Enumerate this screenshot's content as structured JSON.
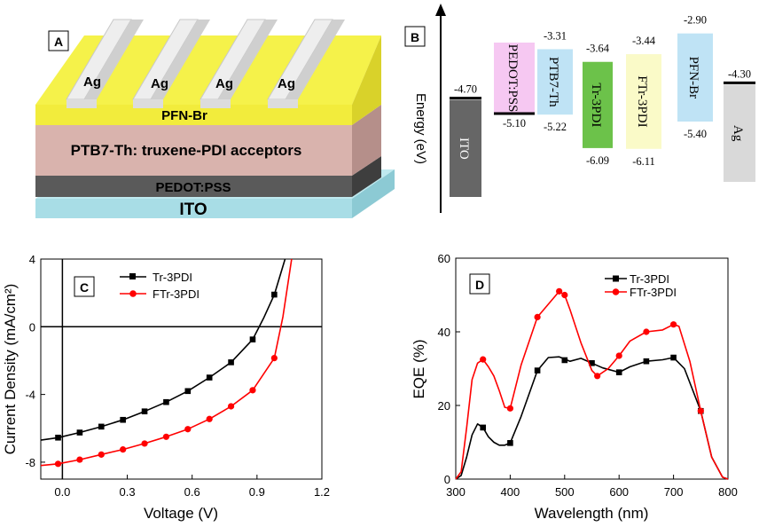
{
  "panels": {
    "a": {
      "letter": "A",
      "electrode_label": "Ag",
      "layers": [
        "PFN-Br",
        "PTB7-Th: truxene-PDI acceptors",
        "PEDOT:PSS",
        "ITO"
      ],
      "colors": {
        "pfn": "#f5f24a",
        "active": "#d9b3ad",
        "pedot": "#5a5a5a",
        "ito": "#a8dde6",
        "ag": "#e8e8e8"
      }
    },
    "b": {
      "letter": "B",
      "axis_label": "Energy (eV)"
    }
  },
  "chart_data": [
    {
      "id": "energy-levels",
      "type": "table",
      "ylabel": "Energy (eV)",
      "materials": [
        {
          "name": "ITO",
          "top": "-4.70",
          "bottom": "",
          "color": "#666666",
          "text_color": "#ffffff"
        },
        {
          "name": "PEDOT:PSS",
          "top": "",
          "bottom": "-5.10",
          "color": "#f6c8f2",
          "text_color": "#000000"
        },
        {
          "name": "PTB7-Th",
          "top": "-3.31",
          "bottom": "-5.22",
          "color": "#bfe3f5",
          "text_color": "#000000"
        },
        {
          "name": "Tr-3PDI",
          "top": "-3.64",
          "bottom": "-6.09",
          "color": "#6cc24a",
          "text_color": "#000000"
        },
        {
          "name": "FTr-3PDI",
          "top": "-3.44",
          "bottom": "-6.11",
          "color": "#fafac8",
          "text_color": "#000000"
        },
        {
          "name": "PFN-Br",
          "top": "-2.90",
          "bottom": "-5.40",
          "color": "#bfe3f5",
          "text_color": "#000000"
        },
        {
          "name": "Ag",
          "top": "-4.30",
          "bottom": "",
          "color": "#d9d9d9",
          "text_color": "#000000"
        }
      ]
    },
    {
      "id": "jv",
      "type": "line",
      "letter": "C",
      "xlabel": "Voltage (V)",
      "ylabel": "Current Density (mA/cm²)",
      "xlim": [
        -0.1,
        1.2
      ],
      "ylim": [
        -9,
        4
      ],
      "xticks": [
        0.0,
        0.3,
        0.6,
        0.9,
        1.2
      ],
      "xtick_labels": [
        "0.0",
        "0.3",
        "0.6",
        "0.9",
        "1.2"
      ],
      "yticks": [
        4,
        0,
        -4,
        -8
      ],
      "ytick_labels": [
        "4",
        "0",
        "-4",
        "-8"
      ],
      "series": [
        {
          "name": "Tr-3PDI",
          "color": "#000000",
          "marker": "square",
          "x": [
            -0.1,
            -0.02,
            0.08,
            0.18,
            0.28,
            0.38,
            0.48,
            0.58,
            0.68,
            0.78,
            0.88,
            0.93,
            0.98,
            1.03
          ],
          "y": [
            -6.7,
            -6.55,
            -6.25,
            -5.9,
            -5.5,
            -5.0,
            -4.45,
            -3.8,
            -3.0,
            -2.1,
            -0.75,
            0.5,
            1.9,
            4.0
          ],
          "marker_x": [
            -0.02,
            0.08,
            0.18,
            0.28,
            0.38,
            0.48,
            0.58,
            0.68,
            0.78,
            0.88,
            0.98
          ],
          "marker_y": [
            -6.55,
            -6.25,
            -5.9,
            -5.5,
            -5.0,
            -4.45,
            -3.8,
            -3.0,
            -2.1,
            -0.75,
            1.9
          ]
        },
        {
          "name": "FTr-3PDI",
          "color": "#ff0000",
          "marker": "circle",
          "x": [
            -0.1,
            -0.02,
            0.08,
            0.18,
            0.28,
            0.38,
            0.48,
            0.58,
            0.68,
            0.78,
            0.88,
            0.98,
            1.02,
            1.06
          ],
          "y": [
            -8.2,
            -8.1,
            -7.85,
            -7.55,
            -7.25,
            -6.9,
            -6.5,
            -6.05,
            -5.45,
            -4.7,
            -3.75,
            -1.85,
            0.6,
            4.0
          ],
          "marker_x": [
            -0.02,
            0.08,
            0.18,
            0.28,
            0.38,
            0.48,
            0.58,
            0.68,
            0.78,
            0.88,
            0.98
          ],
          "marker_y": [
            -8.1,
            -7.85,
            -7.55,
            -7.25,
            -6.9,
            -6.5,
            -6.05,
            -5.45,
            -4.7,
            -3.75,
            -1.85
          ]
        }
      ]
    },
    {
      "id": "eqe",
      "type": "line",
      "letter": "D",
      "xlabel": "Wavelength (nm)",
      "ylabel": "EQE (%)",
      "xlim": [
        300,
        800
      ],
      "ylim": [
        0,
        60
      ],
      "xticks": [
        300,
        400,
        500,
        600,
        700,
        800
      ],
      "xtick_labels": [
        "300",
        "400",
        "500",
        "600",
        "700",
        "800"
      ],
      "yticks": [
        0,
        20,
        40,
        60
      ],
      "ytick_labels": [
        "0",
        "20",
        "40",
        "60"
      ],
      "series": [
        {
          "name": "Tr-3PDI",
          "color": "#000000",
          "marker": "square",
          "x": [
            300,
            310,
            320,
            330,
            340,
            350,
            360,
            370,
            380,
            390,
            400,
            420,
            450,
            470,
            490,
            510,
            530,
            550,
            570,
            600,
            620,
            650,
            680,
            700,
            720,
            750,
            770,
            790,
            800
          ],
          "y": [
            0,
            1,
            6,
            12,
            15,
            14,
            11.5,
            10,
            9.2,
            9.2,
            9.8,
            17,
            29.5,
            33,
            33.2,
            32,
            32.8,
            31.5,
            30.2,
            29,
            30.5,
            32,
            32.4,
            33,
            30,
            18.5,
            6,
            0.5,
            0
          ],
          "marker_x": [
            350,
            400,
            450,
            500,
            550,
            600,
            650,
            700,
            750
          ],
          "marker_y": [
            14,
            9.8,
            29.5,
            32.3,
            31.5,
            29,
            32,
            33,
            18.5
          ]
        },
        {
          "name": "FTr-3PDI",
          "color": "#ff0000",
          "marker": "circle",
          "x": [
            300,
            310,
            320,
            330,
            340,
            350,
            360,
            370,
            380,
            390,
            400,
            420,
            450,
            470,
            490,
            500,
            510,
            530,
            550,
            560,
            580,
            600,
            620,
            650,
            680,
            700,
            710,
            730,
            750,
            770,
            790,
            800
          ],
          "y": [
            0,
            2,
            14,
            27,
            31.5,
            32.5,
            30.5,
            28,
            24,
            19.5,
            19.2,
            31,
            44,
            47.5,
            51,
            50,
            46,
            37,
            29.5,
            28,
            30,
            33.5,
            37.5,
            40,
            40.5,
            42,
            41.5,
            32,
            18.5,
            6,
            0.5,
            0
          ],
          "marker_x": [
            350,
            400,
            450,
            490,
            500,
            560,
            600,
            650,
            700,
            750
          ],
          "marker_y": [
            32.5,
            19.2,
            44,
            51,
            50,
            28,
            33.5,
            40,
            42,
            18.5
          ]
        }
      ]
    }
  ]
}
